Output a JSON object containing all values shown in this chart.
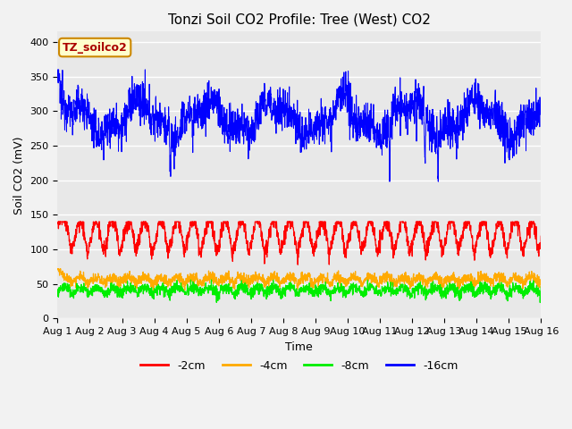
{
  "title": "Tonzi Soil CO2 Profile: Tree (West) CO2",
  "ylabel": "Soil CO2 (mV)",
  "xlabel": "Time",
  "xtick_labels": [
    "Aug 1",
    "Aug 2",
    "Aug 3",
    "Aug 4",
    "Aug 5",
    "Aug 6",
    "Aug 7",
    "Aug 8",
    "Aug 9",
    "Aug 10",
    "Aug 11",
    "Aug 12",
    "Aug 13",
    "Aug 14",
    "Aug 15",
    "Aug 16"
  ],
  "yticks": [
    0,
    50,
    100,
    150,
    200,
    250,
    300,
    350,
    400
  ],
  "ylim": [
    0,
    415
  ],
  "legend_label": "TZ_soilco2",
  "series_labels": [
    "-2cm",
    "-4cm",
    "-8cm",
    "-16cm"
  ],
  "series_colors": [
    "#ff0000",
    "#ffaa00",
    "#00ee00",
    "#0000ff"
  ],
  "background_color": "#e8e8e8",
  "fig_color": "#f2f2f2",
  "title_fontsize": 11,
  "legend_box_color": "#ffffcc",
  "legend_box_edge": "#cc8800",
  "tick_fontsize": 8
}
